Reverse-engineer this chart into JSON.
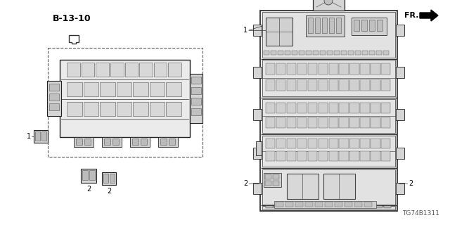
{
  "bg_color": "#ffffff",
  "text_color": "#000000",
  "part_number": "TG74B1311",
  "fr_label": "FR.",
  "ref_label": "B-13-10",
  "label1": "1",
  "label2": "2",
  "line_color": "#333333",
  "fill_light": "#e8e8e8",
  "fill_mid": "#d0d0d0",
  "fill_dark": "#b8b8b8",
  "stroke": "#222222"
}
